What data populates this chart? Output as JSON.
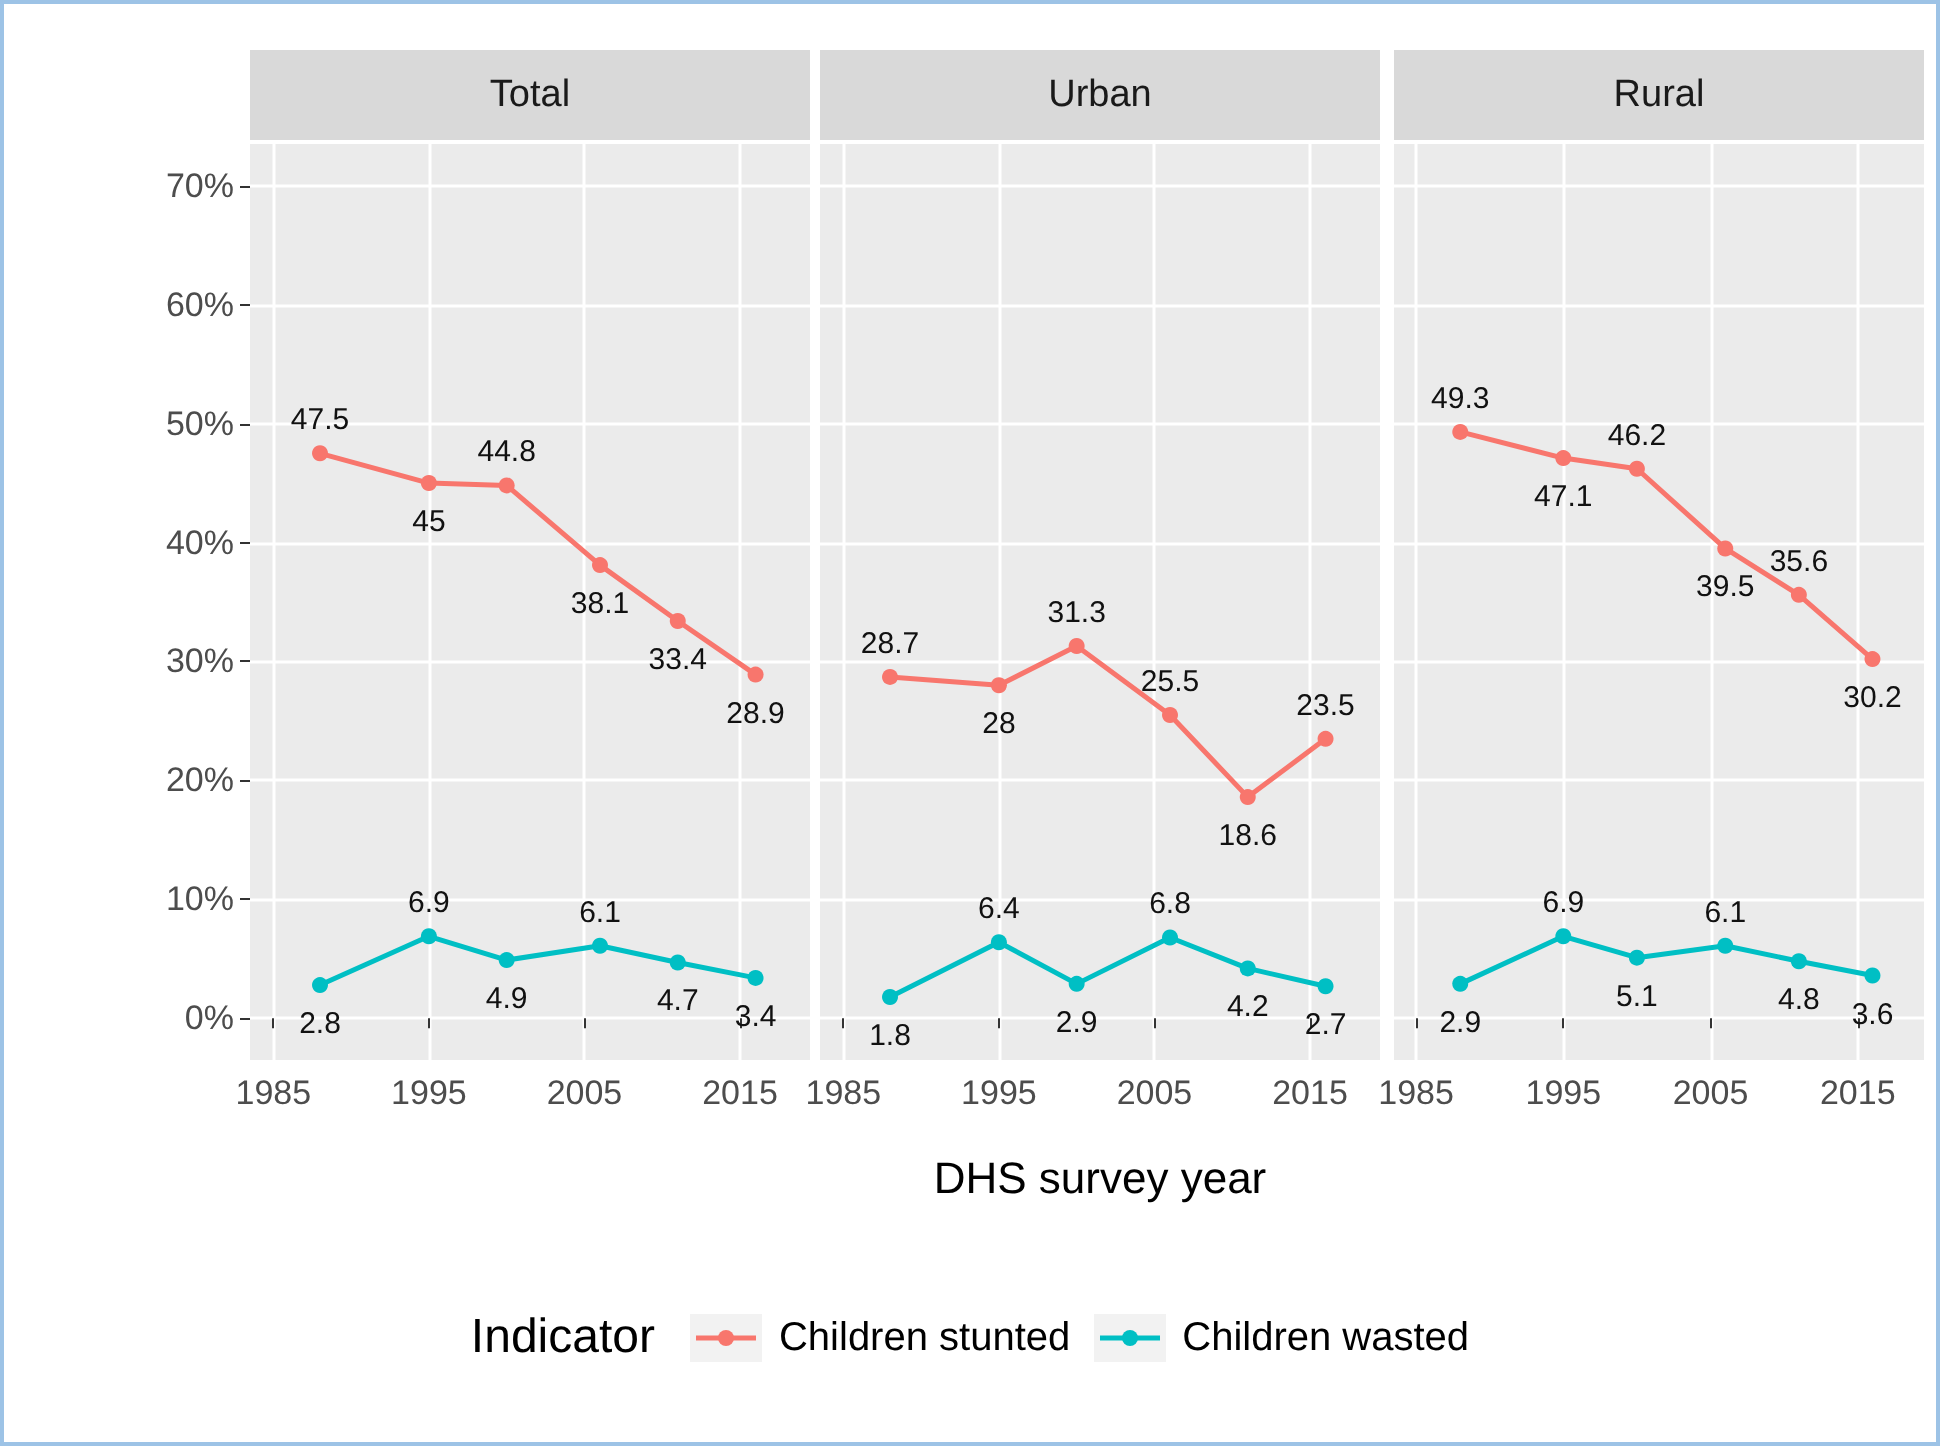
{
  "chart_data": [
    {
      "type": "line",
      "title": "Total",
      "x": [
        1988,
        1995,
        2000,
        2006,
        2011,
        2016
      ],
      "xlim": [
        1983.5,
        2019.5
      ],
      "xticks": [
        1985,
        1995,
        2005,
        2015
      ],
      "ylim": [
        -3.5,
        73.5
      ],
      "yticks": [
        {
          "value": 0,
          "label": "0%"
        },
        {
          "value": 10,
          "label": "10%"
        },
        {
          "value": 20,
          "label": "20%"
        },
        {
          "value": 30,
          "label": "30%"
        },
        {
          "value": 40,
          "label": "40%"
        },
        {
          "value": 50,
          "label": "50%"
        },
        {
          "value": 60,
          "label": "60%"
        },
        {
          "value": 70,
          "label": "70%"
        }
      ],
      "grid": true,
      "marker": "circle",
      "data_labels": true,
      "legend": "bottom",
      "legend_title": "Indicator",
      "series": [
        {
          "name": "Children stunted",
          "color": "#f8766d",
          "values": [
            47.5,
            45,
            44.8,
            38.1,
            33.4,
            28.9
          ]
        },
        {
          "name": "Children wasted",
          "color": "#00bfc4",
          "values": [
            2.8,
            6.9,
            4.9,
            6.1,
            4.7,
            3.4
          ]
        }
      ]
    },
    {
      "type": "line",
      "title": "Urban",
      "x": [
        1988,
        1995,
        2000,
        2006,
        2011,
        2016
      ],
      "xlim": [
        1983.5,
        2019.5
      ],
      "xticks": [
        1985,
        1995,
        2005,
        2015
      ],
      "ylim": [
        -3.5,
        73.5
      ],
      "yticks": [
        0,
        10,
        20,
        30,
        40,
        50,
        60,
        70
      ],
      "tick_labels": "x",
      "grid": true,
      "marker": "circle",
      "data_labels": true,
      "xlabel": "DHS survey year",
      "series": [
        {
          "color": "#f8766d",
          "values": [
            28.7,
            28,
            31.3,
            25.5,
            18.6,
            23.5
          ]
        },
        {
          "color": "#00bfc4",
          "values": [
            1.8,
            6.4,
            2.9,
            6.8,
            4.2,
            2.7
          ]
        }
      ]
    },
    {
      "type": "line",
      "title": "Rural",
      "x": [
        1988,
        1995,
        2000,
        2006,
        2011,
        2016
      ],
      "xlim": [
        1983.5,
        2019.5
      ],
      "xticks": [
        1985,
        1995,
        2005,
        2015
      ],
      "ylim": [
        -3.5,
        73.5
      ],
      "yticks": [
        0,
        10,
        20,
        30,
        40,
        50,
        60,
        70
      ],
      "tick_labels": "x",
      "grid": true,
      "marker": "circle",
      "data_labels": true,
      "series": [
        {
          "color": "#f8766d",
          "values": [
            49.3,
            47.1,
            46.2,
            39.5,
            35.6,
            30.2
          ]
        },
        {
          "color": "#00bfc4",
          "values": [
            2.9,
            6.9,
            5.1,
            6.1,
            4.8,
            3.6
          ]
        }
      ]
    }
  ]
}
